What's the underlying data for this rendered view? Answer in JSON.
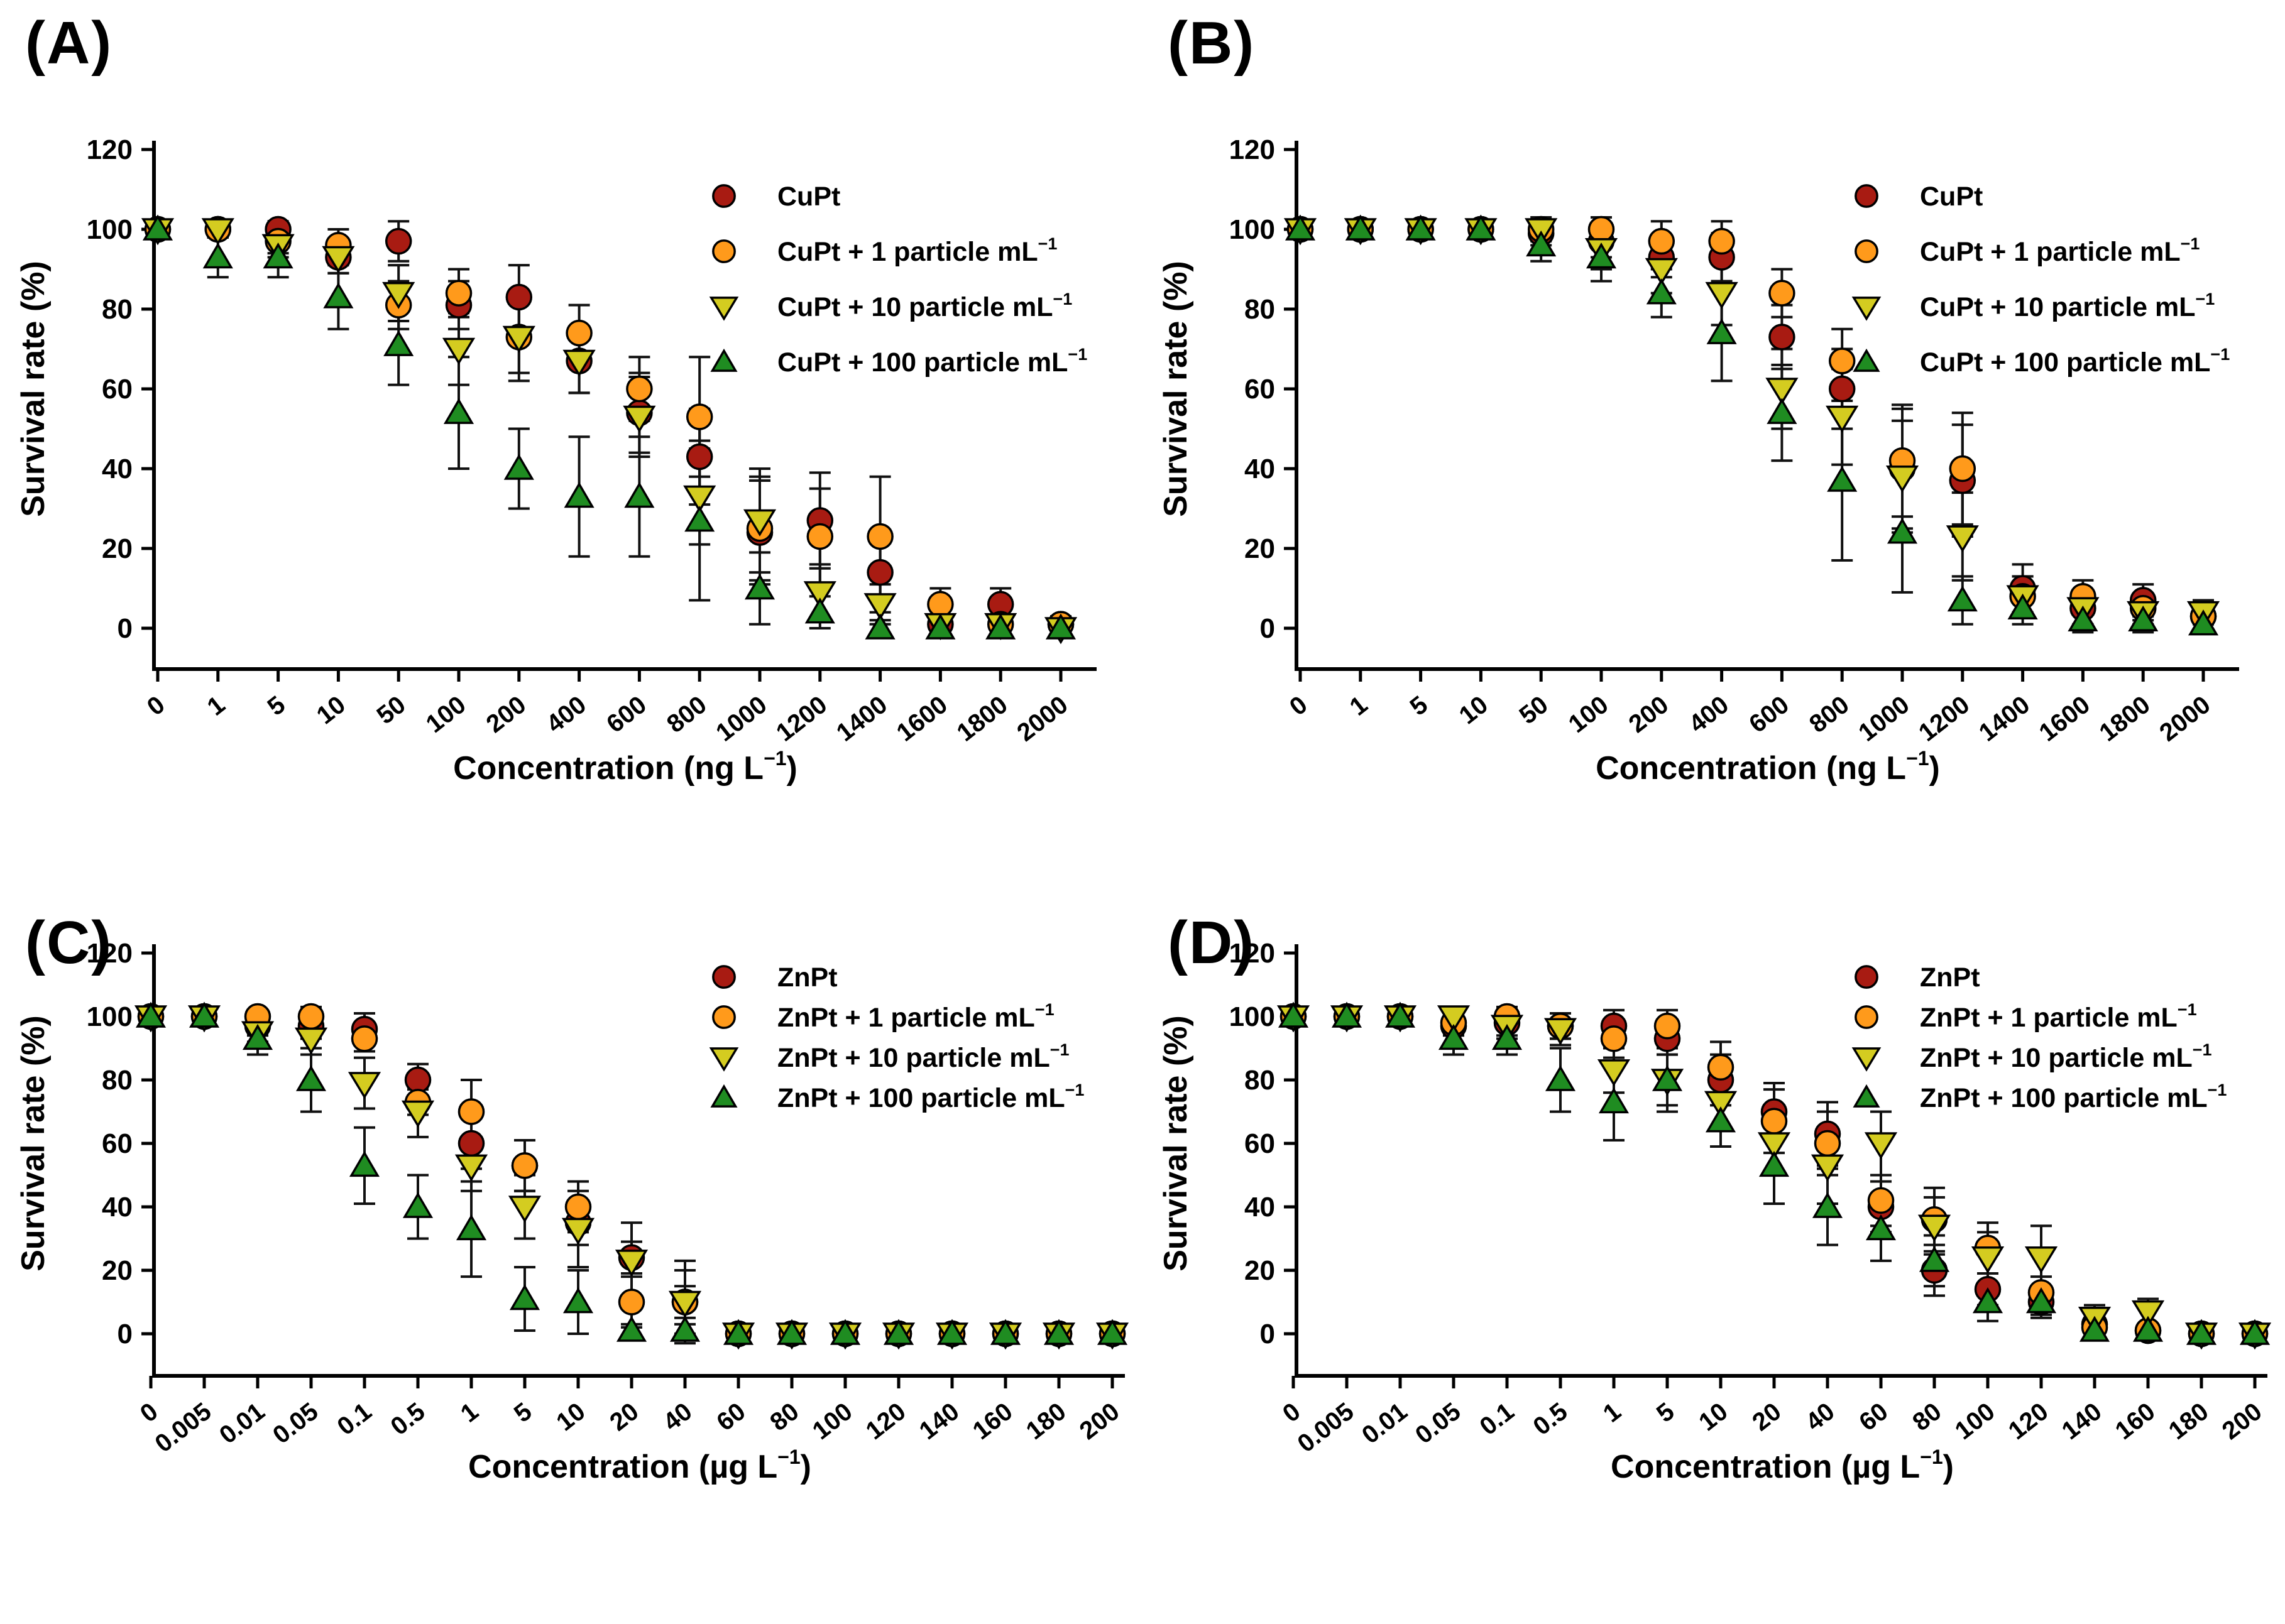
{
  "page": {
    "background": "#ffffff"
  },
  "chart_data": [
    {
      "type": "scatter",
      "panel_label": "(A)",
      "xlabel": "Concentration (ng L⁻¹)",
      "ylabel": "Survival rate (%)",
      "ylim": [
        0,
        120
      ],
      "yticks": [
        0,
        20,
        40,
        60,
        80,
        100,
        120
      ],
      "grid": false,
      "legend_position": "top-right",
      "categories": [
        "0",
        "1",
        "5",
        "10",
        "50",
        "100",
        "200",
        "400",
        "600",
        "800",
        "1000",
        "1200",
        "1400",
        "1600",
        "1800",
        "2000"
      ],
      "series": [
        {
          "name": "CuPt",
          "marker": "circle",
          "color": "#A81B12",
          "values": [
            100,
            100,
            100,
            93,
            97,
            81,
            83,
            67,
            54,
            43,
            24,
            27,
            14,
            1,
            6,
            1
          ],
          "errors": [
            2,
            2,
            2,
            4,
            5,
            6,
            8,
            8,
            10,
            12,
            13,
            12,
            10,
            2,
            4,
            2
          ]
        },
        {
          "name": "CuPt + 1 particle mL⁻¹",
          "marker": "circle",
          "color": "#FF9A1B",
          "values": [
            100,
            100,
            97,
            96,
            81,
            84,
            73,
            74,
            60,
            53,
            25,
            23,
            23,
            6,
            1,
            1
          ],
          "errors": [
            2,
            2,
            3,
            4,
            6,
            6,
            9,
            7,
            8,
            15,
            13,
            12,
            15,
            4,
            2,
            2
          ]
        },
        {
          "name": "CuPt + 10 particle mL⁻¹",
          "marker": "triangle-down",
          "color": "#D4CC20",
          "values": [
            100,
            100,
            96,
            93,
            84,
            70,
            73,
            67,
            53,
            33,
            27,
            9,
            6,
            1,
            1,
            0
          ],
          "errors": [
            2,
            2,
            3,
            4,
            7,
            9,
            11,
            8,
            10,
            12,
            13,
            7,
            5,
            2,
            2,
            2
          ]
        },
        {
          "name": "CuPt + 100 particle mL⁻¹",
          "marker": "triangle-up",
          "color": "#1F8C21",
          "values": [
            100,
            93,
            93,
            83,
            71,
            54,
            40,
            33,
            33,
            27,
            10,
            4,
            0,
            0,
            0,
            0
          ],
          "errors": [
            2,
            5,
            5,
            8,
            10,
            14,
            10,
            15,
            15,
            20,
            9,
            4,
            2,
            2,
            2,
            2
          ]
        }
      ]
    },
    {
      "type": "scatter",
      "panel_label": "(B)",
      "xlabel": "Concentration (ng L⁻¹)",
      "ylabel": "Survival rate (%)",
      "ylim": [
        0,
        120
      ],
      "yticks": [
        0,
        20,
        40,
        60,
        80,
        100,
        120
      ],
      "grid": false,
      "legend_position": "top-right",
      "categories": [
        "0",
        "1",
        "5",
        "10",
        "50",
        "100",
        "200",
        "400",
        "600",
        "800",
        "1000",
        "1200",
        "1400",
        "1600",
        "1800",
        "2000"
      ],
      "series": [
        {
          "name": "CuPt",
          "marker": "circle",
          "color": "#A81B12",
          "values": [
            100,
            100,
            100,
            100,
            99,
            97,
            93,
            93,
            73,
            60,
            40,
            37,
            10,
            5,
            7,
            3
          ],
          "errors": [
            2,
            2,
            2,
            2,
            3,
            4,
            5,
            6,
            8,
            10,
            15,
            14,
            6,
            4,
            4,
            2
          ]
        },
        {
          "name": "CuPt + 1 particle mL⁻¹",
          "marker": "circle",
          "color": "#FF9A1B",
          "values": [
            100,
            100,
            100,
            100,
            100,
            100,
            97,
            97,
            84,
            67,
            42,
            40,
            8,
            8,
            5,
            3
          ],
          "errors": [
            2,
            2,
            2,
            2,
            2,
            3,
            5,
            5,
            6,
            8,
            14,
            14,
            5,
            4,
            3,
            2
          ]
        },
        {
          "name": "CuPt + 10 particle mL⁻¹",
          "marker": "triangle-down",
          "color": "#D4CC20",
          "values": [
            100,
            100,
            100,
            100,
            100,
            95,
            90,
            84,
            60,
            53,
            38,
            23,
            8,
            5,
            4,
            4
          ],
          "errors": [
            2,
            2,
            2,
            2,
            3,
            5,
            6,
            8,
            10,
            12,
            14,
            11,
            5,
            4,
            3,
            3
          ]
        },
        {
          "name": "CuPt + 100 particle mL⁻¹",
          "marker": "triangle-up",
          "color": "#1F8C21",
          "values": [
            100,
            100,
            100,
            100,
            96,
            93,
            84,
            74,
            54,
            37,
            24,
            7,
            5,
            2,
            2,
            1
          ],
          "errors": [
            2,
            2,
            2,
            2,
            4,
            6,
            6,
            12,
            12,
            20,
            15,
            6,
            4,
            3,
            3,
            2
          ]
        }
      ]
    },
    {
      "type": "scatter",
      "panel_label": "(C)",
      "xlabel": "Concentration (µg L⁻¹)",
      "ylabel": "Survival rate (%)",
      "ylim": [
        0,
        120
      ],
      "yticks": [
        0,
        20,
        40,
        60,
        80,
        100,
        120
      ],
      "grid": false,
      "legend_position": "top-right",
      "categories": [
        "0",
        "0.005",
        "0.01",
        "0.05",
        "0.1",
        "0.5",
        "1",
        "5",
        "10",
        "20",
        "40",
        "60",
        "80",
        "100",
        "120",
        "140",
        "160",
        "180",
        "200"
      ],
      "series": [
        {
          "name": "ZnPt",
          "marker": "circle",
          "color": "#A81B12",
          "values": [
            100,
            100,
            97,
            97,
            96,
            80,
            60,
            53,
            35,
            24,
            10,
            0,
            0,
            0,
            0,
            0,
            0,
            0,
            0
          ],
          "errors": [
            2,
            2,
            3,
            4,
            5,
            5,
            8,
            8,
            7,
            5,
            5,
            2,
            2,
            2,
            2,
            2,
            2,
            2,
            2
          ]
        },
        {
          "name": "ZnPt + 1 particle mL⁻¹",
          "marker": "circle",
          "color": "#FF9A1B",
          "values": [
            100,
            100,
            100,
            100,
            93,
            73,
            70,
            53,
            40,
            10,
            10,
            0,
            0,
            0,
            0,
            0,
            0,
            0,
            0
          ],
          "errors": [
            2,
            2,
            2,
            3,
            4,
            4,
            10,
            8,
            8,
            8,
            13,
            2,
            2,
            2,
            2,
            2,
            2,
            2,
            2
          ]
        },
        {
          "name": "ZnPt + 10 particle mL⁻¹",
          "marker": "triangle-down",
          "color": "#D4CC20",
          "values": [
            100,
            100,
            95,
            93,
            79,
            70,
            53,
            40,
            33,
            23,
            10,
            0,
            0,
            0,
            0,
            0,
            0,
            0,
            0
          ],
          "errors": [
            2,
            2,
            3,
            5,
            8,
            8,
            8,
            10,
            12,
            12,
            10,
            2,
            2,
            2,
            2,
            2,
            2,
            2,
            2
          ]
        },
        {
          "name": "ZnPt + 100 particle mL⁻¹",
          "marker": "triangle-up",
          "color": "#1F8C21",
          "values": [
            100,
            100,
            93,
            80,
            53,
            40,
            33,
            11,
            10,
            1,
            1,
            0,
            0,
            0,
            0,
            0,
            0,
            0,
            0
          ],
          "errors": [
            2,
            2,
            5,
            10,
            12,
            10,
            15,
            10,
            10,
            2,
            2,
            2,
            2,
            2,
            2,
            2,
            2,
            2,
            2
          ]
        }
      ]
    },
    {
      "type": "scatter",
      "panel_label": "(D)",
      "xlabel": "Concentration (µg L⁻¹)",
      "ylabel": "Survival rate (%)",
      "ylim": [
        0,
        120
      ],
      "yticks": [
        0,
        20,
        40,
        60,
        80,
        100,
        120
      ],
      "grid": false,
      "legend_position": "top-right",
      "categories": [
        "0",
        "0.005",
        "0.01",
        "0.05",
        "0.1",
        "0.5",
        "1",
        "5",
        "10",
        "20",
        "40",
        "60",
        "80",
        "100",
        "120",
        "140",
        "160",
        "180",
        "200"
      ],
      "series": [
        {
          "name": "ZnPt",
          "marker": "circle",
          "color": "#A81B12",
          "values": [
            100,
            100,
            100,
            97,
            98,
            97,
            97,
            93,
            80,
            70,
            63,
            40,
            20,
            14,
            10,
            3,
            1,
            0,
            0
          ],
          "errors": [
            2,
            2,
            2,
            3,
            4,
            4,
            5,
            5,
            8,
            9,
            10,
            8,
            8,
            5,
            4,
            2,
            2,
            2,
            2
          ]
        },
        {
          "name": "ZnPt + 1 particle mL⁻¹",
          "marker": "circle",
          "color": "#FF9A1B",
          "values": [
            100,
            100,
            100,
            98,
            100,
            97,
            93,
            97,
            84,
            67,
            60,
            42,
            36,
            27,
            13,
            2,
            1,
            0,
            0
          ],
          "errors": [
            2,
            2,
            2,
            3,
            3,
            4,
            6,
            5,
            8,
            10,
            10,
            8,
            10,
            8,
            5,
            2,
            2,
            2,
            2
          ]
        },
        {
          "name": "ZnPt + 10 particle mL⁻¹",
          "marker": "triangle-down",
          "color": "#D4CC20",
          "values": [
            100,
            100,
            100,
            100,
            97,
            96,
            83,
            80,
            73,
            60,
            53,
            60,
            34,
            24,
            24,
            5,
            7,
            0,
            0
          ],
          "errors": [
            2,
            2,
            2,
            3,
            4,
            5,
            7,
            8,
            8,
            10,
            12,
            10,
            9,
            8,
            10,
            4,
            4,
            2,
            2
          ]
        },
        {
          "name": "ZnPt + 100 particle mL⁻¹",
          "marker": "triangle-up",
          "color": "#1F8C21",
          "values": [
            100,
            100,
            100,
            93,
            93,
            80,
            73,
            80,
            67,
            53,
            40,
            33,
            23,
            10,
            10,
            1,
            1,
            0,
            0
          ],
          "errors": [
            2,
            2,
            2,
            5,
            5,
            10,
            12,
            10,
            8,
            12,
            12,
            10,
            8,
            6,
            5,
            2,
            2,
            2,
            2
          ]
        }
      ]
    }
  ]
}
